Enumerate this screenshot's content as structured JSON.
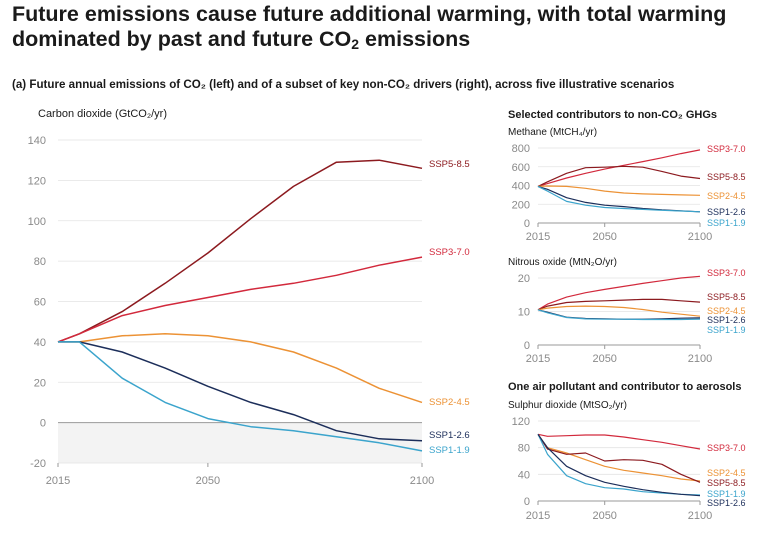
{
  "header": {
    "title_line1": "Future emissions cause future additional warming, with total warming",
    "title_line2_pre": "dominated by past and future CO",
    "title_line2_sub": "2",
    "title_line2_post": " emissions",
    "section_a": "(a) Future annual emissions of CO₂ (left) and of a subset of key non-CO₂ drivers (right), across five illustrative scenarios"
  },
  "colors": {
    "SSP5-8.5": "#8c1a1f",
    "SSP3-7.0": "#d2293c",
    "SSP2-4.5": "#ec9235",
    "SSP1-2.6": "#1c2e5a",
    "SSP1-1.9": "#3ba4cc",
    "axis_text": "#8a8a8a",
    "grid": "#e3e3e3",
    "negative_band": "#f3f3f3"
  },
  "right_headings": {
    "ghg": "Selected contributors to non-CO₂ GHGs",
    "aerosol": "One air pollutant and contributor to aerosols"
  },
  "chart_data": [
    {
      "type": "line",
      "ylabel": "Carbon dioxide (GtCO₂/yr)",
      "x_ticks": [
        2015,
        2050,
        2100
      ],
      "xlim": [
        2015,
        2100
      ],
      "ylim": [
        -20,
        140
      ],
      "y_ticks": [
        -20,
        0,
        20,
        40,
        60,
        80,
        100,
        120,
        140
      ],
      "x": [
        2015,
        2020,
        2030,
        2040,
        2050,
        2060,
        2070,
        2080,
        2090,
        2100
      ],
      "series": [
        {
          "name": "SSP5-8.5",
          "values": [
            40,
            44,
            55,
            69,
            84,
            101,
            117,
            129,
            130,
            126
          ]
        },
        {
          "name": "SSP3-7.0",
          "values": [
            40,
            44,
            53,
            58,
            62,
            66,
            69,
            73,
            78,
            82
          ]
        },
        {
          "name": "SSP2-4.5",
          "values": [
            40,
            40,
            43,
            44,
            43,
            40,
            35,
            27,
            17,
            10
          ]
        },
        {
          "name": "SSP1-2.6",
          "values": [
            40,
            40,
            35,
            27,
            18,
            10,
            4,
            -4,
            -8,
            -9
          ]
        },
        {
          "name": "SSP1-1.9",
          "values": [
            40,
            40,
            22,
            10,
            2,
            -2,
            -4,
            -7,
            -10,
            -14
          ]
        }
      ]
    },
    {
      "type": "line",
      "ylabel": "Methane (MtCH₄/yr)",
      "x_ticks": [
        2015,
        2050,
        2100
      ],
      "xlim": [
        2015,
        2100
      ],
      "ylim": [
        0,
        800
      ],
      "y_ticks": [
        0,
        200,
        400,
        600,
        800
      ],
      "x": [
        2015,
        2020,
        2030,
        2040,
        2050,
        2060,
        2070,
        2080,
        2090,
        2100
      ],
      "series": [
        {
          "name": "SSP3-7.0",
          "values": [
            390,
            420,
            480,
            530,
            575,
            615,
            655,
            695,
            740,
            780
          ]
        },
        {
          "name": "SSP5-8.5",
          "values": [
            390,
            440,
            530,
            590,
            595,
            605,
            595,
            550,
            500,
            475
          ]
        },
        {
          "name": "SSP2-4.5",
          "values": [
            390,
            395,
            390,
            370,
            340,
            320,
            310,
            305,
            300,
            295
          ]
        },
        {
          "name": "SSP1-2.6",
          "values": [
            390,
            360,
            270,
            220,
            190,
            175,
            155,
            140,
            130,
            120
          ]
        },
        {
          "name": "SSP1-1.9",
          "values": [
            390,
            340,
            230,
            190,
            165,
            155,
            145,
            135,
            128,
            120
          ]
        }
      ]
    },
    {
      "type": "line",
      "ylabel": "Nitrous oxide (MtN₂O/yr)",
      "x_ticks": [
        2015,
        2050,
        2100
      ],
      "xlim": [
        2015,
        2100
      ],
      "ylim": [
        0,
        20
      ],
      "y_ticks": [
        0,
        10,
        20
      ],
      "x": [
        2015,
        2020,
        2030,
        2040,
        2050,
        2060,
        2070,
        2080,
        2090,
        2100
      ],
      "series": [
        {
          "name": "SSP3-7.0",
          "values": [
            10.5,
            12.2,
            14.3,
            15.6,
            16.6,
            17.5,
            18.4,
            19.2,
            20.0,
            20.5
          ]
        },
        {
          "name": "SSP5-8.5",
          "values": [
            10.5,
            11.6,
            12.7,
            13.0,
            13.2,
            13.4,
            13.6,
            13.6,
            13.2,
            12.8
          ]
        },
        {
          "name": "SSP2-4.5",
          "values": [
            10.5,
            11.0,
            11.5,
            11.6,
            11.5,
            11.2,
            10.6,
            9.8,
            9.2,
            8.6
          ]
        },
        {
          "name": "SSP1-2.6",
          "values": [
            10.5,
            9.8,
            8.3,
            7.9,
            7.8,
            7.7,
            7.7,
            7.8,
            8.0,
            8.1
          ]
        },
        {
          "name": "SSP1-1.9",
          "values": [
            10.5,
            9.6,
            8.2,
            7.8,
            7.7,
            7.7,
            7.6,
            7.6,
            7.6,
            7.7
          ]
        }
      ]
    },
    {
      "type": "line",
      "ylabel": "Sulphur dioxide (MtSO₂/yr)",
      "x_ticks": [
        2015,
        2050,
        2100
      ],
      "xlim": [
        2015,
        2100
      ],
      "ylim": [
        0,
        120
      ],
      "y_ticks": [
        0,
        40,
        80,
        120
      ],
      "x": [
        2015,
        2020,
        2030,
        2040,
        2050,
        2060,
        2070,
        2080,
        2090,
        2100
      ],
      "series": [
        {
          "name": "SSP3-7.0",
          "values": [
            100,
            97,
            98,
            99,
            99,
            96,
            92,
            88,
            83,
            78
          ]
        },
        {
          "name": "SSP2-4.5",
          "values": [
            100,
            80,
            72,
            62,
            52,
            46,
            42,
            38,
            33,
            30
          ]
        },
        {
          "name": "SSP5-8.5",
          "values": [
            100,
            78,
            70,
            72,
            60,
            62,
            61,
            55,
            40,
            28
          ]
        },
        {
          "name": "SSP1-1.9",
          "values": [
            100,
            70,
            38,
            26,
            20,
            18,
            14,
            12,
            10,
            9
          ]
        },
        {
          "name": "SSP1-2.6",
          "values": [
            100,
            80,
            52,
            38,
            28,
            22,
            17,
            13,
            10,
            8
          ]
        }
      ]
    }
  ]
}
